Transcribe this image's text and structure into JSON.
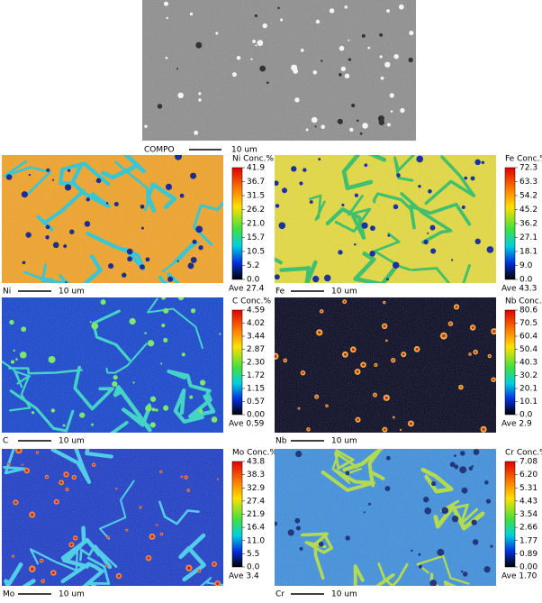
{
  "compo": {
    "label": "COMPO",
    "scale": "10 um"
  },
  "maps": [
    {
      "element": "Ni",
      "title": "Ni Conc.%",
      "ticks": [
        "41.9",
        "36.7",
        "31.5",
        "26.2",
        "21.0",
        "15.7",
        "10.5",
        "5.2",
        "0.0"
      ],
      "average": "Ave 27.4",
      "scale": "10 um"
    },
    {
      "element": "Fe",
      "title": "Fe Conc.%",
      "ticks": [
        "72.3",
        "63.3",
        "54.2",
        "45.2",
        "36.2",
        "27.1",
        "18.1",
        "9.0",
        "0.0"
      ],
      "average": "Ave 43.3",
      "scale": "10 um"
    },
    {
      "element": "C",
      "title": "C Conc.%",
      "ticks": [
        "4.59",
        "4.02",
        "3.44",
        "2.87",
        "2.30",
        "1.72",
        "1.15",
        "0.57",
        "0.00"
      ],
      "average": "Ave 0.59",
      "scale": "10 um"
    },
    {
      "element": "Nb",
      "title": "Nb Conc.%",
      "ticks": [
        "80.6",
        "70.5",
        "60.4",
        "50.4",
        "40.3",
        "30.2",
        "20.1",
        "10.1",
        "0.0"
      ],
      "average": "Ave 2.9",
      "scale": "10 um"
    },
    {
      "element": "Mo",
      "title": "Mo Conc.%",
      "ticks": [
        "43.8",
        "38.3",
        "32.9",
        "27.4",
        "21.9",
        "16.4",
        "11.0",
        "5.5",
        "0.0"
      ],
      "average": "Ave 3.4",
      "scale": "10 um"
    },
    {
      "element": "Cr",
      "title": "Cr Conc.%",
      "ticks": [
        "7.08",
        "6.20",
        "5.31",
        "4.43",
        "3.54",
        "2.66",
        "1.77",
        "0.89",
        "0.00"
      ],
      "average": "Ave 1.70",
      "scale": "10 um"
    }
  ]
}
